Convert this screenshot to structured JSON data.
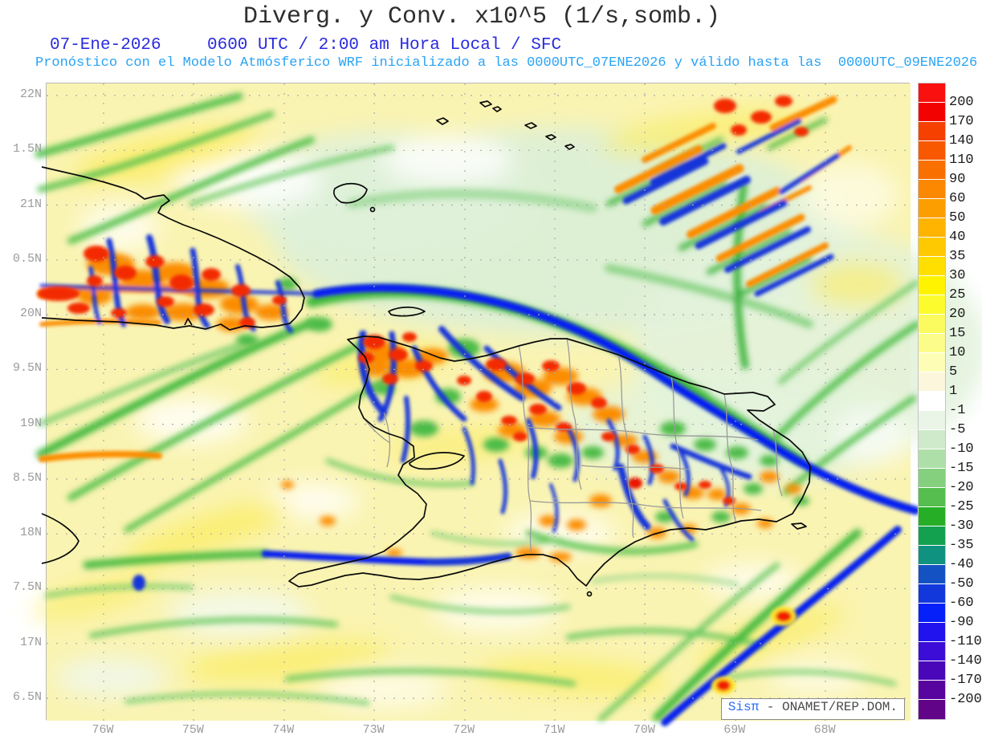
{
  "title": "Diverg. y Conv. x10^5 (1/s,somb.)",
  "header": {
    "date": "07-Ene-2026",
    "time": "0600 UTC / 2:00 am Hora Local / SFC",
    "forecast": "Pronóstico con el Modelo Atmósferico WRF inicializado a las 0000UTC_07ENE2026 y válido hasta las  0000UTC_09ENE2026"
  },
  "axes": {
    "lat_labels": [
      "22N",
      "1.5N",
      "21N",
      "0.5N",
      "20N",
      "9.5N",
      "19N",
      "8.5N",
      "18N",
      "7.5N",
      "17N",
      "6.5N"
    ],
    "lon_labels": [
      "76W",
      "75W",
      "74W",
      "73W",
      "72W",
      "71W",
      "70W",
      "69W",
      "68W"
    ]
  },
  "colorbar": {
    "tick_labels": [
      "200",
      "170",
      "140",
      "110",
      "90",
      "60",
      "50",
      "40",
      "35",
      "30",
      "25",
      "20",
      "15",
      "10",
      "5",
      "1",
      "-1",
      "-5",
      "-10",
      "-15",
      "-20",
      "-25",
      "-30",
      "-35",
      "-40",
      "-50",
      "-60",
      "-90",
      "-110",
      "-140",
      "-170",
      "-200"
    ],
    "cell_colors": [
      "#fb1010",
      "#f30202",
      "#f64000",
      "#f75800",
      "#f97000",
      "#fb8800",
      "#fc9e00",
      "#feb400",
      "#fec900",
      "#ffdf00",
      "#fff300",
      "#fbfb2e",
      "#fbfb5f",
      "#fcfc8a",
      "#fdfdb6",
      "#fcf6dc",
      "#ffffff",
      "#eaf5e7",
      "#cfeaca",
      "#aedfa8",
      "#85d07e",
      "#55be4e",
      "#27ae27",
      "#13a150",
      "#0f9280",
      "#1452c4",
      "#1238dc",
      "#0520f8",
      "#2113ee",
      "#3b0dd6",
      "#4a07ba",
      "#58049e",
      "#620488"
    ]
  },
  "attribution": {
    "brand": "Sisπ",
    "rest": " - ONAMET/REP.DOM."
  },
  "colors": {
    "title_text": "#2e2e2e",
    "date_text": "#2a2ae0",
    "forecast_text": "#29a3f5",
    "axis_text": "#9b9b9b",
    "field_background": "#faf4b2"
  }
}
